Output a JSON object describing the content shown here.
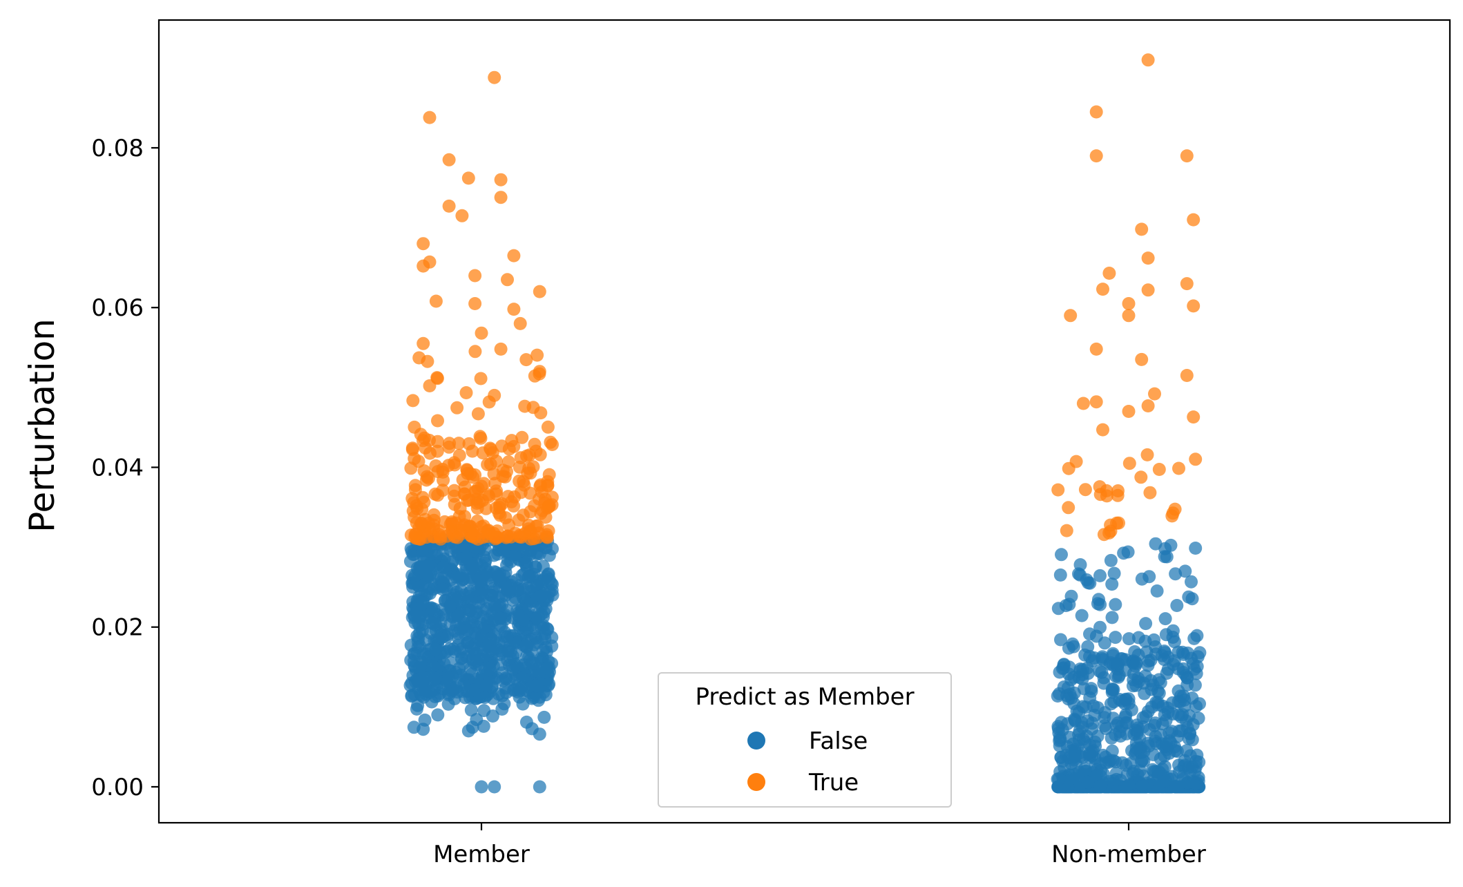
{
  "chart_data": {
    "type": "scatter",
    "subtype": "strip",
    "title": "",
    "xlabel": "",
    "ylabel": "Perturbation",
    "ylim": [
      -0.0045,
      0.096
    ],
    "yticks": [
      "0.00",
      "0.02",
      "0.04",
      "0.06",
      "0.08"
    ],
    "ytick_values": [
      0.0,
      0.02,
      0.04,
      0.06,
      0.08
    ],
    "categories": [
      "Member",
      "Non-member"
    ],
    "threshold": 0.031,
    "jitter": 0.11,
    "colors": {
      "False": "#1f77b4",
      "True": "#ff7f0e"
    },
    "legend": {
      "title": "Predict as Member",
      "placement": "lower-center",
      "entries": [
        {
          "label": "False",
          "color": "#1f77b4"
        },
        {
          "label": "True",
          "color": "#ff7f0e"
        }
      ]
    },
    "series": [
      {
        "name": "Member",
        "approx_points": 1000,
        "distribution_description": "dense between 0.011 and 0.031, a few stragglers down to 0.007, three points at 0.0",
        "highlighted_points": [
          {
            "x_offset": -0.08,
            "y": 0.0838,
            "pred": "True"
          },
          {
            "x_offset": 0.02,
            "y": 0.0888,
            "pred": "True"
          },
          {
            "x_offset": -0.05,
            "y": 0.0785,
            "pred": "True"
          },
          {
            "x_offset": -0.02,
            "y": 0.0762,
            "pred": "True"
          },
          {
            "x_offset": 0.03,
            "y": 0.076,
            "pred": "True"
          },
          {
            "x_offset": 0.03,
            "y": 0.0738,
            "pred": "True"
          },
          {
            "x_offset": -0.05,
            "y": 0.0727,
            "pred": "True"
          },
          {
            "x_offset": -0.03,
            "y": 0.0715,
            "pred": "True"
          },
          {
            "x_offset": -0.09,
            "y": 0.068,
            "pred": "True"
          },
          {
            "x_offset": 0.05,
            "y": 0.0665,
            "pred": "True"
          },
          {
            "x_offset": -0.08,
            "y": 0.0657,
            "pred": "True"
          },
          {
            "x_offset": -0.09,
            "y": 0.0652,
            "pred": "True"
          },
          {
            "x_offset": 0.09,
            "y": 0.062,
            "pred": "True"
          },
          {
            "x_offset": -0.01,
            "y": 0.064,
            "pred": "True"
          },
          {
            "x_offset": 0.04,
            "y": 0.0635,
            "pred": "True"
          },
          {
            "x_offset": -0.07,
            "y": 0.0608,
            "pred": "True"
          },
          {
            "x_offset": -0.01,
            "y": 0.0605,
            "pred": "True"
          },
          {
            "x_offset": 0.05,
            "y": 0.0598,
            "pred": "True"
          },
          {
            "x_offset": 0.06,
            "y": 0.058,
            "pred": "True"
          },
          {
            "x_offset": -0.09,
            "y": 0.0555,
            "pred": "True"
          },
          {
            "x_offset": 0.03,
            "y": 0.0548,
            "pred": "True"
          },
          {
            "x_offset": 0.09,
            "y": 0.052,
            "pred": "True"
          },
          {
            "x_offset": 0.0,
            "y": 0.0568,
            "pred": "True"
          },
          {
            "x_offset": -0.08,
            "y": 0.0502,
            "pred": "True"
          },
          {
            "x_offset": 0.02,
            "y": 0.049,
            "pred": "True"
          },
          {
            "x_offset": 0.08,
            "y": 0.0475,
            "pred": "True"
          },
          {
            "x_offset": 0.0,
            "y": 0.0,
            "pred": "False"
          },
          {
            "x_offset": 0.02,
            "y": 0.0,
            "pred": "False"
          },
          {
            "x_offset": 0.09,
            "y": 0.0,
            "pred": "False"
          },
          {
            "x_offset": 0.09,
            "y": 0.0066,
            "pred": "False"
          },
          {
            "x_offset": -0.09,
            "y": 0.0072,
            "pred": "False"
          },
          {
            "x_offset": -0.02,
            "y": 0.007,
            "pred": "False"
          }
        ]
      },
      {
        "name": "Non-member",
        "approx_points": 1000,
        "distribution_description": "most points between 0.0 and 0.015 with a large cluster at exactly 0.0, sparser up to 0.03",
        "highlighted_points": [
          {
            "x_offset": 0.03,
            "y": 0.091,
            "pred": "True"
          },
          {
            "x_offset": -0.05,
            "y": 0.0845,
            "pred": "True"
          },
          {
            "x_offset": -0.05,
            "y": 0.079,
            "pred": "True"
          },
          {
            "x_offset": 0.09,
            "y": 0.079,
            "pred": "True"
          },
          {
            "x_offset": 0.1,
            "y": 0.071,
            "pred": "True"
          },
          {
            "x_offset": 0.02,
            "y": 0.0698,
            "pred": "True"
          },
          {
            "x_offset": 0.03,
            "y": 0.0662,
            "pred": "True"
          },
          {
            "x_offset": -0.03,
            "y": 0.0643,
            "pred": "True"
          },
          {
            "x_offset": 0.09,
            "y": 0.063,
            "pred": "True"
          },
          {
            "x_offset": -0.04,
            "y": 0.0623,
            "pred": "True"
          },
          {
            "x_offset": 0.03,
            "y": 0.0622,
            "pred": "True"
          },
          {
            "x_offset": 0.1,
            "y": 0.0602,
            "pred": "True"
          },
          {
            "x_offset": -0.09,
            "y": 0.059,
            "pred": "True"
          },
          {
            "x_offset": 0.0,
            "y": 0.0605,
            "pred": "True"
          },
          {
            "x_offset": 0.0,
            "y": 0.059,
            "pred": "True"
          },
          {
            "x_offset": -0.05,
            "y": 0.0548,
            "pred": "True"
          },
          {
            "x_offset": 0.02,
            "y": 0.0535,
            "pred": "True"
          },
          {
            "x_offset": 0.09,
            "y": 0.0515,
            "pred": "True"
          },
          {
            "x_offset": 0.04,
            "y": 0.0492,
            "pred": "True"
          },
          {
            "x_offset": -0.05,
            "y": 0.0482,
            "pred": "True"
          },
          {
            "x_offset": -0.07,
            "y": 0.048,
            "pred": "True"
          },
          {
            "x_offset": 0.03,
            "y": 0.0477,
            "pred": "True"
          },
          {
            "x_offset": 0.1,
            "y": 0.0463,
            "pred": "True"
          },
          {
            "x_offset": 0.0,
            "y": 0.047,
            "pred": "True"
          },
          {
            "x_offset": -0.04,
            "y": 0.0447,
            "pred": "True"
          }
        ]
      }
    ]
  }
}
